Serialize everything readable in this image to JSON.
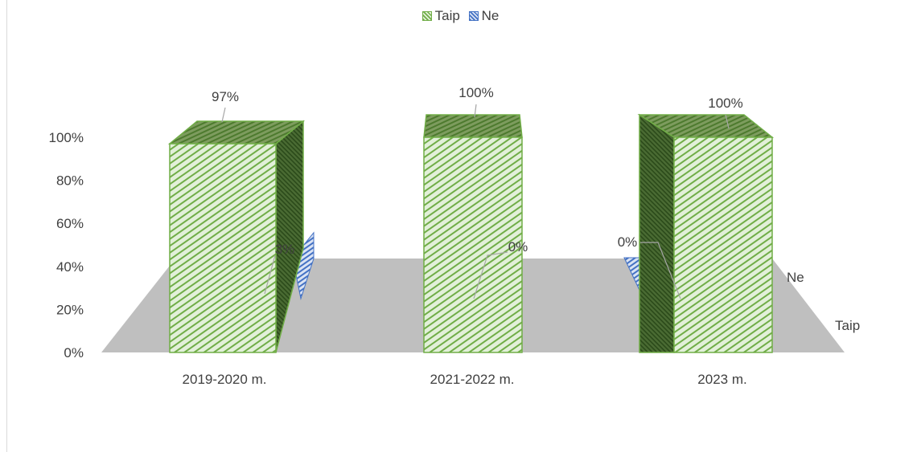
{
  "chart_data": {
    "type": "bar",
    "title": "",
    "xlabel": "",
    "ylabel": "",
    "categories": [
      "2019-2020 m.",
      "2021-2022 m.",
      "2023 m."
    ],
    "series": [
      {
        "name": "Taip",
        "values": [
          97,
          100,
          100
        ],
        "labels": [
          "97%",
          "100%",
          "100%"
        ]
      },
      {
        "name": "Ne",
        "values": [
          3,
          0,
          0
        ],
        "labels": [
          "3%",
          "0%",
          "0%"
        ]
      }
    ],
    "y_ticks": [
      "0%",
      "20%",
      "40%",
      "60%",
      "80%",
      "100%"
    ],
    "ylim": [
      0,
      100
    ],
    "depth_axis_labels": [
      "Ne",
      "Taip"
    ],
    "legend_position": "top",
    "grid": false,
    "colors": {
      "Taip_fill": "#e2f0d9",
      "Taip_stripe": "#70ad47",
      "Taip_side": "#375623",
      "Ne_fill": "#dae3f3",
      "Ne_stripe": "#4472c4",
      "floor": "#bfbfbf",
      "leader": "#a6a6a6"
    }
  }
}
